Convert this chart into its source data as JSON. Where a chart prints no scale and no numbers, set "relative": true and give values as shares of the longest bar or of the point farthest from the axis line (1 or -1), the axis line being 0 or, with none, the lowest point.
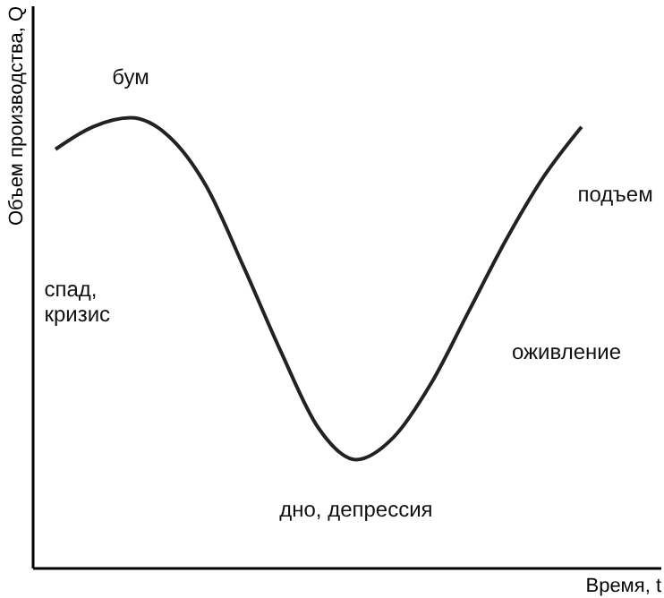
{
  "chart_data": {
    "type": "line",
    "relative": true,
    "xlabel": "Время, t",
    "ylabel": "Объем производства, Q",
    "categories": [
      null,
      null,
      null,
      null,
      null,
      null,
      null,
      null,
      null,
      null,
      null,
      null,
      null,
      null,
      null
    ],
    "series": [
      {
        "color": "#222222",
        "values": [
          0.93,
          0.98,
          1,
          0.96,
          0.85,
          0.67,
          0.48,
          0.31,
          0.24,
          0.29,
          0.41,
          0.57,
          0.73,
          0.87,
          0.98
        ]
      }
    ],
    "annotations": [
      "бум",
      "спад,\nкризис",
      "дно, депрессия",
      "оживление",
      "подъем"
    ],
    "grid": false,
    "line_style": "solid"
  }
}
